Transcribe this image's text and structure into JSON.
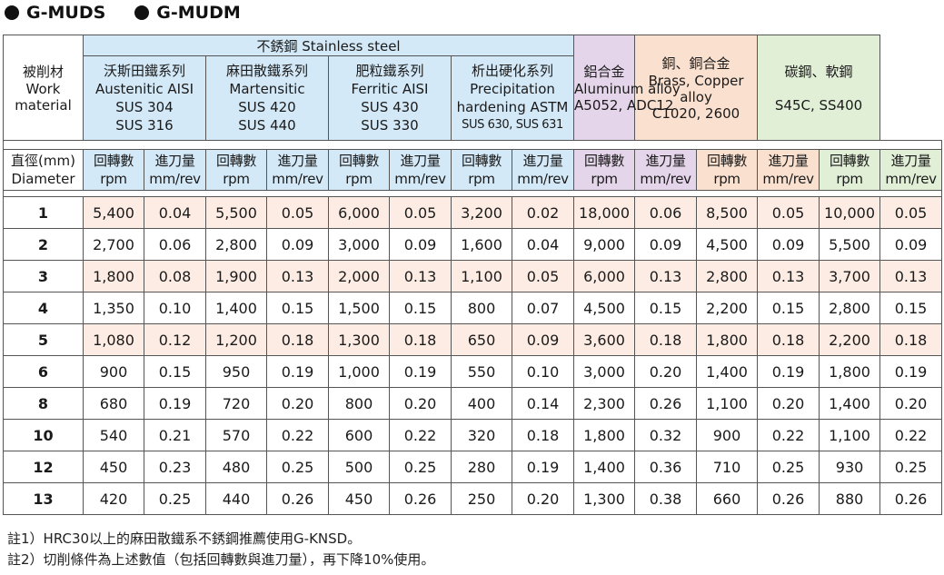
{
  "titles": [
    "G-MUDS",
    "G-MUDM"
  ],
  "table": {
    "work_material": [
      "被削材",
      "Work",
      "material"
    ],
    "stainless_group": "不銹鋼 Stainless steel",
    "materials": [
      {
        "lines": [
          "沃斯田鐵系列",
          "Austenitic AISI",
          "SUS 304",
          "SUS 316"
        ],
        "color": "#d4e9f7"
      },
      {
        "lines": [
          "麻田散鐵系列",
          "Martensitic",
          "SUS 420",
          "SUS 440"
        ],
        "color": "#d4e9f7"
      },
      {
        "lines": [
          "肥粒鐵系列",
          "Ferritic AISI",
          "SUS 430",
          "SUS 330"
        ],
        "color": "#d4e9f7"
      },
      {
        "lines": [
          "析出硬化系列",
          "Precipitation",
          "hardening ASTM",
          "SUS 630, SUS 631"
        ],
        "color": "#d4e9f7"
      },
      {
        "lines": [
          "鋁合金",
          "Aluminum alloy",
          "A5052, ADC12"
        ],
        "color": "#e5d5ea"
      },
      {
        "lines": [
          "銅、銅合金",
          "Brass, Copper",
          "alloy",
          "C1020, 2600"
        ],
        "color": "#fae0cf"
      },
      {
        "lines": [
          "碳鋼、軟鋼",
          "",
          "S45C, SS400"
        ],
        "color": "#e2efd7"
      }
    ],
    "diameter_label": [
      "直徑(mm)",
      "Diameter"
    ],
    "rpm_label": [
      "回轉數",
      "rpm"
    ],
    "feed_label": [
      "進刀量",
      "mm/rev"
    ],
    "rows": [
      {
        "dia": "1",
        "values": [
          "5,400",
          "0.04",
          "5,500",
          "0.05",
          "6,000",
          "0.05",
          "3,200",
          "0.02",
          "18,000",
          "0.06",
          "8,500",
          "0.05",
          "10,000",
          "0.05"
        ]
      },
      {
        "dia": "2",
        "values": [
          "2,700",
          "0.06",
          "2,800",
          "0.09",
          "3,000",
          "0.09",
          "1,600",
          "0.04",
          "9,000",
          "0.09",
          "4,500",
          "0.09",
          "5,500",
          "0.09"
        ]
      },
      {
        "dia": "3",
        "values": [
          "1,800",
          "0.08",
          "1,900",
          "0.13",
          "2,000",
          "0.13",
          "1,100",
          "0.05",
          "6,000",
          "0.13",
          "2,800",
          "0.13",
          "3,700",
          "0.13"
        ]
      },
      {
        "dia": "4",
        "values": [
          "1,350",
          "0.10",
          "1,400",
          "0.15",
          "1,500",
          "0.15",
          "800",
          "0.07",
          "4,500",
          "0.15",
          "2,200",
          "0.15",
          "2,800",
          "0.15"
        ]
      },
      {
        "dia": "5",
        "values": [
          "1,080",
          "0.12",
          "1,200",
          "0.18",
          "1,300",
          "0.18",
          "650",
          "0.09",
          "3,600",
          "0.18",
          "1,800",
          "0.18",
          "2,200",
          "0.18"
        ]
      },
      {
        "dia": "6",
        "values": [
          "900",
          "0.15",
          "950",
          "0.19",
          "1,000",
          "0.19",
          "550",
          "0.10",
          "3,000",
          "0.20",
          "1,400",
          "0.19",
          "1,800",
          "0.19"
        ]
      },
      {
        "dia": "8",
        "values": [
          "680",
          "0.19",
          "720",
          "0.20",
          "800",
          "0.20",
          "400",
          "0.14",
          "2,300",
          "0.26",
          "1,100",
          "0.20",
          "1,400",
          "0.20"
        ]
      },
      {
        "dia": "10",
        "values": [
          "540",
          "0.21",
          "570",
          "0.22",
          "600",
          "0.22",
          "320",
          "0.18",
          "1,800",
          "0.32",
          "900",
          "0.22",
          "1,100",
          "0.22"
        ]
      },
      {
        "dia": "12",
        "values": [
          "450",
          "0.23",
          "480",
          "0.25",
          "500",
          "0.25",
          "280",
          "0.19",
          "1,400",
          "0.36",
          "710",
          "0.25",
          "930",
          "0.25"
        ]
      },
      {
        "dia": "13",
        "values": [
          "420",
          "0.25",
          "440",
          "0.26",
          "450",
          "0.26",
          "250",
          "0.20",
          "1,300",
          "0.38",
          "660",
          "0.26",
          "880",
          "0.26"
        ]
      }
    ],
    "shaded_rows_color": "#fdece3"
  },
  "notes": [
    "註1）HRC30以上的麻田散鐵系不銹鋼推薦使用G-KNSD。",
    "註2）切削條件為上述數值（包括回轉數與進刀量），再下降10%使用。"
  ]
}
